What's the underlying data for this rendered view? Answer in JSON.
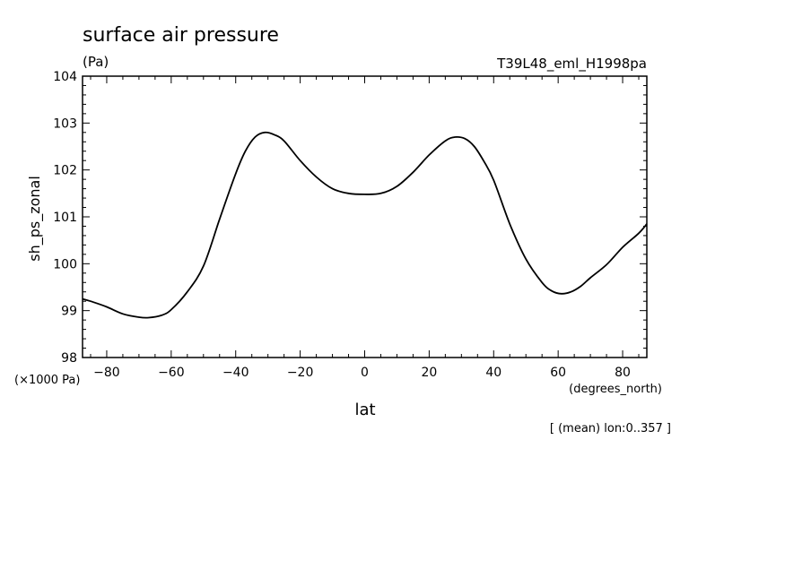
{
  "chart_data": {
    "type": "line",
    "title": "surface air pressure",
    "units": "(Pa)",
    "dataset": "T39L48_eml_H1998pa",
    "ylabel": "sh_ps_zonal",
    "ylabel_units": "(×1000 Pa)",
    "xlabel": "lat",
    "xlabel_units": "(degrees_north)",
    "note": "[ (mean) lon:0..357 ]",
    "xlim": [
      -87.5,
      87.5
    ],
    "ylim": [
      98,
      104
    ],
    "x_ticks": [
      -80,
      -60,
      -40,
      -20,
      0,
      20,
      40,
      60,
      80
    ],
    "y_ticks": [
      98,
      99,
      100,
      101,
      102,
      103,
      104
    ],
    "grid": false,
    "series": [
      {
        "x": [
          -87.5,
          -85,
          -80,
          -75,
          -70,
          -67,
          -63,
          -60,
          -55,
          -50,
          -45,
          -40,
          -37,
          -34,
          -31,
          -28,
          -25,
          -20,
          -15,
          -10,
          -5,
          0,
          5,
          10,
          15,
          20,
          25,
          28,
          31,
          34,
          37,
          40,
          45,
          50,
          55,
          58,
          61,
          64,
          67,
          70,
          75,
          80,
          85,
          87.5
        ],
        "y": [
          99.25,
          99.2,
          99.08,
          98.93,
          98.86,
          98.85,
          98.9,
          99.02,
          99.4,
          99.95,
          100.95,
          101.92,
          102.4,
          102.7,
          102.8,
          102.75,
          102.62,
          102.2,
          101.85,
          101.6,
          101.5,
          101.48,
          101.5,
          101.65,
          101.95,
          102.32,
          102.62,
          102.7,
          102.67,
          102.5,
          102.18,
          101.78,
          100.85,
          100.1,
          99.6,
          99.42,
          99.36,
          99.4,
          99.52,
          99.7,
          99.98,
          100.35,
          100.65,
          100.85
        ]
      }
    ]
  }
}
